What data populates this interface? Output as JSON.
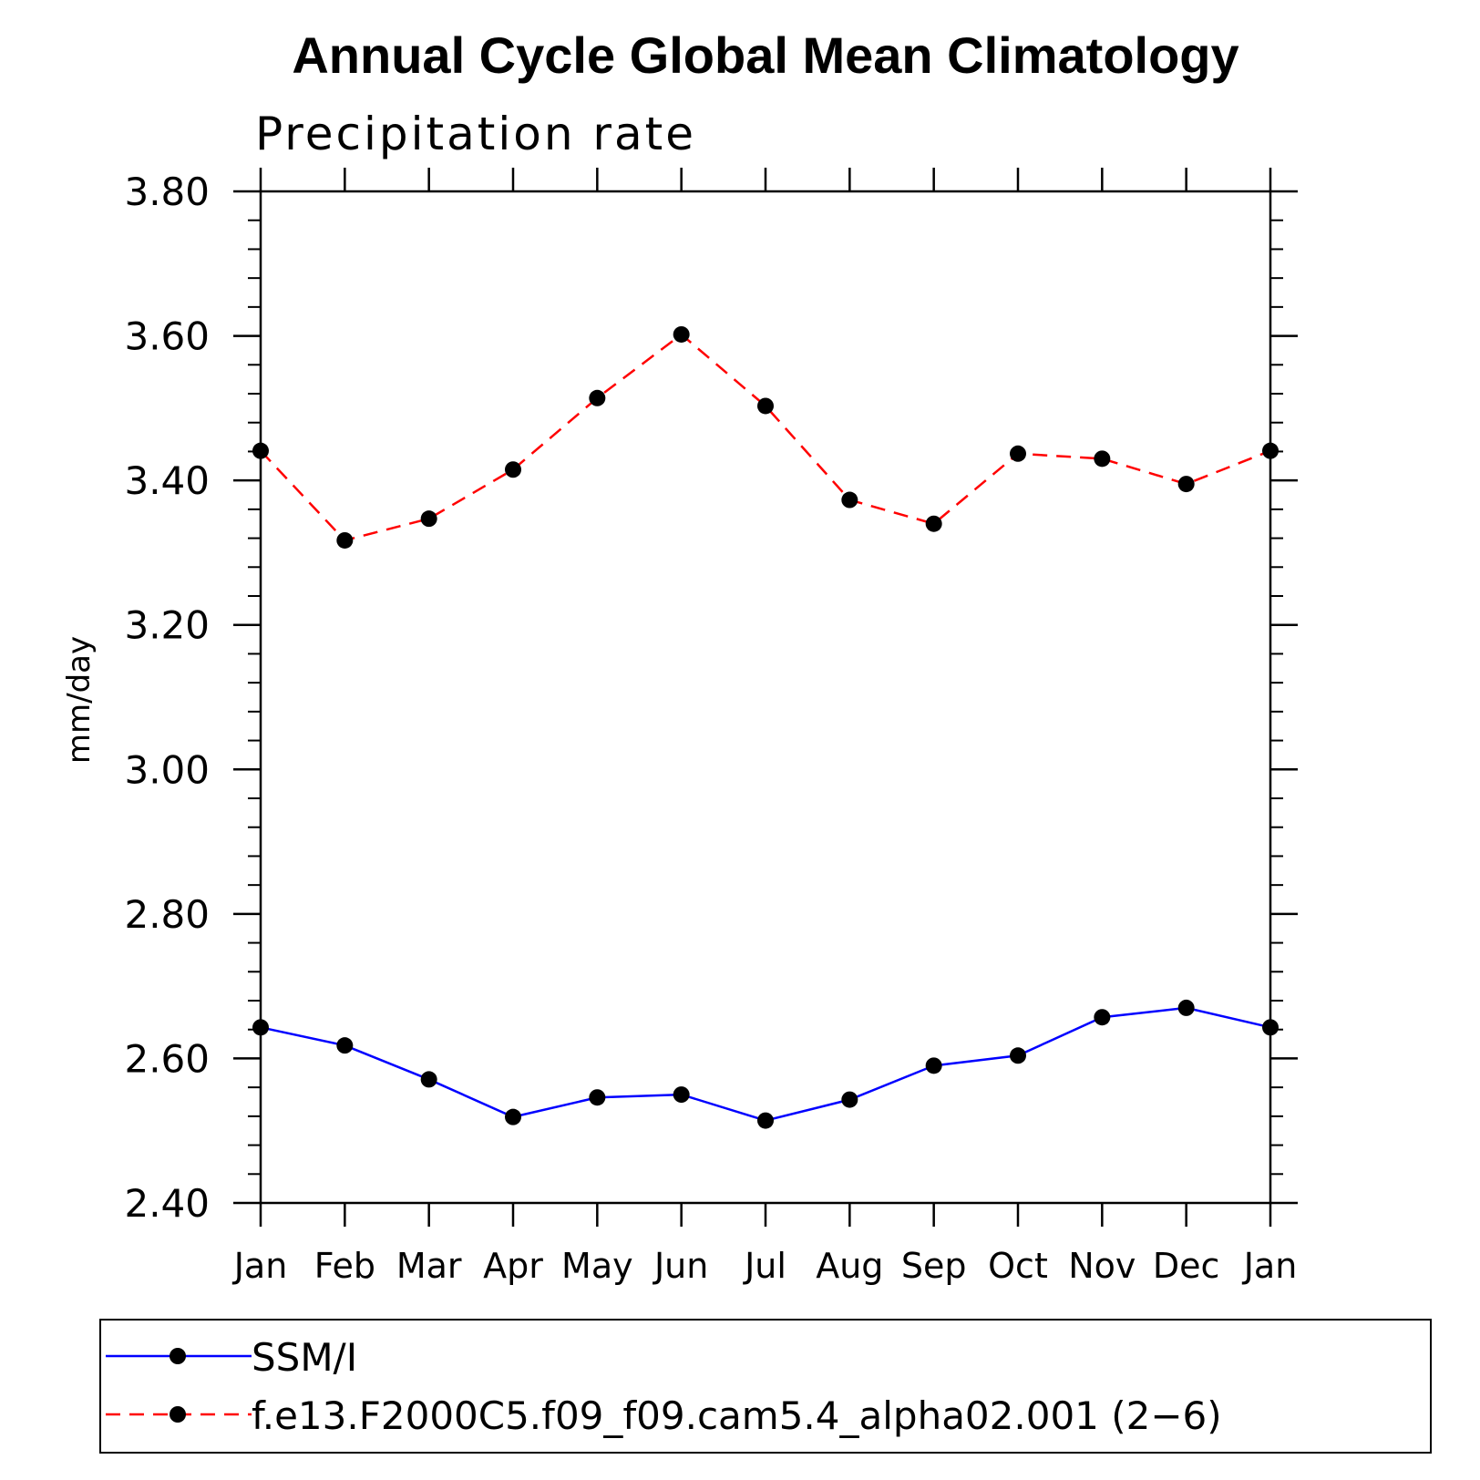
{
  "chart_data": {
    "type": "line",
    "title": "Annual Cycle Global Mean Climatology",
    "subtitle": "Precipitation rate",
    "xlabel": "",
    "ylabel": "mm/day",
    "ylim": [
      2.4,
      3.8
    ],
    "yticks": [
      "2.40",
      "2.60",
      "2.80",
      "3.00",
      "3.20",
      "3.40",
      "3.60",
      "3.80"
    ],
    "yticks_values": [
      2.4,
      2.6,
      2.8,
      3.0,
      3.2,
      3.4,
      3.6,
      3.8
    ],
    "categories": [
      "Jan",
      "Feb",
      "Mar",
      "Apr",
      "May",
      "Jun",
      "Jul",
      "Aug",
      "Sep",
      "Oct",
      "Nov",
      "Dec",
      "Jan"
    ],
    "grid": false,
    "legend_position": "bottom",
    "series": [
      {
        "name": "SSM/I",
        "color": "#0000ff",
        "dash": "solid",
        "values": [
          2.643,
          2.618,
          2.571,
          2.519,
          2.546,
          2.55,
          2.514,
          2.543,
          2.59,
          2.604,
          2.657,
          2.67,
          2.643
        ]
      },
      {
        "name": "f.e13.F2000C5.f09_f09.cam5.4_alpha02.001 (2−6)",
        "color": "#ff0000",
        "dash": "dashed",
        "values": [
          3.441,
          3.317,
          3.347,
          3.415,
          3.514,
          3.602,
          3.503,
          3.373,
          3.34,
          3.437,
          3.43,
          3.395,
          3.441
        ]
      }
    ]
  }
}
